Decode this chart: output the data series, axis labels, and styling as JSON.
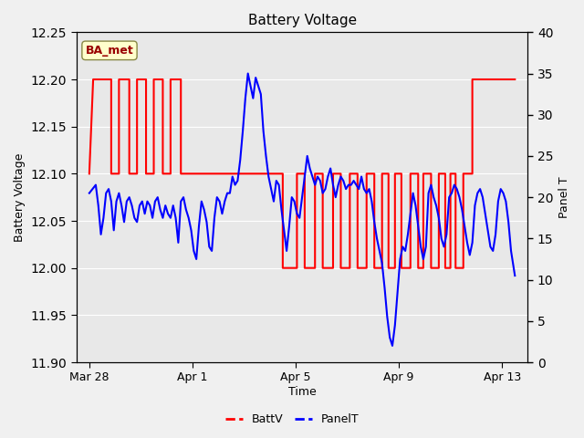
{
  "title": "Battery Voltage",
  "xlabel": "Time",
  "ylabel_left": "Battery Voltage",
  "ylabel_right": "Panel T",
  "ylim_left": [
    11.9,
    12.25
  ],
  "ylim_right": [
    0,
    40
  ],
  "yticks_left": [
    11.9,
    11.95,
    12.0,
    12.05,
    12.1,
    12.15,
    12.2,
    12.25
  ],
  "yticks_right": [
    0,
    5,
    10,
    15,
    20,
    25,
    30,
    35,
    40
  ],
  "bg_color": "#f0f0f0",
  "plot_bg_color": "#e8e8e8",
  "grid_color": "#ffffff",
  "annotation_text": "BA_met",
  "annotation_bg": "#ffffcc",
  "annotation_border": "#888844",
  "annotation_text_color": "#990000",
  "batt_color": "#ff0000",
  "panel_color": "#0000ff",
  "xticklabels": [
    "Mar 28",
    "Apr 1",
    "Apr 5",
    "Apr 9",
    "Apr 13"
  ],
  "xtick_positions": [
    0.0,
    4.0,
    8.0,
    12.0,
    16.0
  ],
  "xlim": [
    -0.5,
    17.0
  ],
  "batt_data": [
    [
      0.0,
      12.1
    ],
    [
      0.0,
      12.1
    ],
    [
      0.15,
      12.2
    ],
    [
      0.85,
      12.2
    ],
    [
      0.85,
      12.1
    ],
    [
      1.15,
      12.1
    ],
    [
      1.15,
      12.2
    ],
    [
      1.55,
      12.2
    ],
    [
      1.55,
      12.1
    ],
    [
      1.85,
      12.1
    ],
    [
      1.85,
      12.2
    ],
    [
      2.2,
      12.2
    ],
    [
      2.2,
      12.1
    ],
    [
      2.5,
      12.1
    ],
    [
      2.5,
      12.2
    ],
    [
      2.85,
      12.2
    ],
    [
      2.85,
      12.1
    ],
    [
      3.15,
      12.1
    ],
    [
      3.15,
      12.2
    ],
    [
      3.55,
      12.2
    ],
    [
      3.55,
      12.1
    ],
    [
      7.5,
      12.1
    ],
    [
      7.5,
      12.0
    ],
    [
      8.05,
      12.0
    ],
    [
      8.05,
      12.1
    ],
    [
      8.35,
      12.1
    ],
    [
      8.35,
      12.0
    ],
    [
      8.75,
      12.0
    ],
    [
      8.75,
      12.1
    ],
    [
      9.05,
      12.1
    ],
    [
      9.05,
      12.0
    ],
    [
      9.45,
      12.0
    ],
    [
      9.45,
      12.1
    ],
    [
      9.75,
      12.1
    ],
    [
      9.75,
      12.0
    ],
    [
      10.1,
      12.0
    ],
    [
      10.1,
      12.1
    ],
    [
      10.4,
      12.1
    ],
    [
      10.4,
      12.0
    ],
    [
      10.75,
      12.0
    ],
    [
      10.75,
      12.1
    ],
    [
      11.05,
      12.1
    ],
    [
      11.05,
      12.0
    ],
    [
      11.35,
      12.0
    ],
    [
      11.35,
      12.1
    ],
    [
      11.6,
      12.1
    ],
    [
      11.6,
      12.0
    ],
    [
      11.85,
      12.0
    ],
    [
      11.85,
      12.1
    ],
    [
      12.1,
      12.1
    ],
    [
      12.1,
      12.0
    ],
    [
      12.45,
      12.0
    ],
    [
      12.45,
      12.1
    ],
    [
      12.75,
      12.1
    ],
    [
      12.75,
      12.0
    ],
    [
      12.95,
      12.0
    ],
    [
      12.95,
      12.1
    ],
    [
      13.25,
      12.1
    ],
    [
      13.25,
      12.0
    ],
    [
      13.55,
      12.0
    ],
    [
      13.55,
      12.1
    ],
    [
      13.8,
      12.1
    ],
    [
      13.8,
      12.0
    ],
    [
      14.0,
      12.0
    ],
    [
      14.0,
      12.1
    ],
    [
      14.2,
      12.1
    ],
    [
      14.2,
      12.0
    ],
    [
      14.5,
      12.0
    ],
    [
      14.5,
      12.1
    ],
    [
      14.85,
      12.1
    ],
    [
      14.85,
      12.2
    ],
    [
      16.5,
      12.2
    ]
  ],
  "panel_data": [
    [
      0.0,
      20.5
    ],
    [
      0.25,
      21.5
    ],
    [
      0.35,
      19.0
    ],
    [
      0.45,
      15.5
    ],
    [
      0.55,
      17.5
    ],
    [
      0.65,
      20.5
    ],
    [
      0.75,
      21.0
    ],
    [
      0.85,
      19.5
    ],
    [
      0.95,
      16.0
    ],
    [
      1.05,
      19.5
    ],
    [
      1.15,
      20.5
    ],
    [
      1.25,
      19.0
    ],
    [
      1.35,
      17.0
    ],
    [
      1.45,
      19.5
    ],
    [
      1.55,
      20.0
    ],
    [
      1.65,
      19.0
    ],
    [
      1.75,
      17.5
    ],
    [
      1.85,
      17.0
    ],
    [
      1.95,
      19.0
    ],
    [
      2.05,
      19.5
    ],
    [
      2.15,
      18.0
    ],
    [
      2.25,
      19.5
    ],
    [
      2.35,
      19.0
    ],
    [
      2.45,
      17.5
    ],
    [
      2.55,
      19.5
    ],
    [
      2.65,
      20.0
    ],
    [
      2.75,
      18.5
    ],
    [
      2.85,
      17.5
    ],
    [
      2.95,
      19.0
    ],
    [
      3.05,
      18.0
    ],
    [
      3.15,
      17.5
    ],
    [
      3.25,
      19.0
    ],
    [
      3.35,
      17.5
    ],
    [
      3.45,
      14.5
    ],
    [
      3.55,
      19.5
    ],
    [
      3.65,
      20.0
    ],
    [
      3.75,
      18.5
    ],
    [
      3.85,
      17.5
    ],
    [
      3.95,
      16.0
    ],
    [
      4.05,
      13.5
    ],
    [
      4.15,
      12.5
    ],
    [
      4.25,
      16.5
    ],
    [
      4.35,
      19.5
    ],
    [
      4.45,
      18.5
    ],
    [
      4.55,
      17.0
    ],
    [
      4.65,
      14.0
    ],
    [
      4.75,
      13.5
    ],
    [
      4.85,
      17.5
    ],
    [
      4.95,
      20.0
    ],
    [
      5.05,
      19.5
    ],
    [
      5.15,
      18.0
    ],
    [
      5.25,
      19.5
    ],
    [
      5.35,
      20.5
    ],
    [
      5.45,
      20.5
    ],
    [
      5.55,
      22.5
    ],
    [
      5.65,
      21.5
    ],
    [
      5.75,
      22.0
    ],
    [
      5.85,
      24.5
    ],
    [
      5.95,
      28.0
    ],
    [
      6.05,
      32.0
    ],
    [
      6.15,
      35.0
    ],
    [
      6.25,
      33.5
    ],
    [
      6.35,
      32.0
    ],
    [
      6.45,
      34.5
    ],
    [
      6.55,
      33.5
    ],
    [
      6.65,
      32.5
    ],
    [
      6.75,
      28.0
    ],
    [
      6.85,
      25.0
    ],
    [
      6.95,
      22.5
    ],
    [
      7.05,
      21.0
    ],
    [
      7.15,
      19.5
    ],
    [
      7.25,
      22.0
    ],
    [
      7.35,
      21.5
    ],
    [
      7.45,
      18.5
    ],
    [
      7.55,
      16.0
    ],
    [
      7.65,
      13.5
    ],
    [
      7.75,
      16.5
    ],
    [
      7.85,
      20.0
    ],
    [
      7.95,
      19.5
    ],
    [
      8.05,
      18.0
    ],
    [
      8.15,
      17.5
    ],
    [
      8.25,
      20.0
    ],
    [
      8.35,
      22.5
    ],
    [
      8.45,
      25.0
    ],
    [
      8.55,
      23.5
    ],
    [
      8.65,
      22.5
    ],
    [
      8.75,
      21.5
    ],
    [
      8.85,
      22.5
    ],
    [
      8.95,
      22.0
    ],
    [
      9.05,
      20.5
    ],
    [
      9.15,
      21.0
    ],
    [
      9.25,
      22.5
    ],
    [
      9.35,
      23.5
    ],
    [
      9.45,
      21.5
    ],
    [
      9.55,
      20.0
    ],
    [
      9.65,
      21.5
    ],
    [
      9.75,
      22.5
    ],
    [
      9.85,
      22.0
    ],
    [
      9.95,
      21.0
    ],
    [
      10.05,
      21.5
    ],
    [
      10.15,
      21.5
    ],
    [
      10.25,
      22.0
    ],
    [
      10.35,
      21.5
    ],
    [
      10.45,
      21.0
    ],
    [
      10.55,
      22.5
    ],
    [
      10.65,
      21.0
    ],
    [
      10.75,
      20.5
    ],
    [
      10.85,
      21.0
    ],
    [
      10.95,
      19.5
    ],
    [
      11.05,
      17.0
    ],
    [
      11.15,
      15.0
    ],
    [
      11.25,
      13.5
    ],
    [
      11.35,
      12.0
    ],
    [
      11.45,
      9.0
    ],
    [
      11.55,
      5.5
    ],
    [
      11.65,
      3.0
    ],
    [
      11.75,
      2.0
    ],
    [
      11.85,
      4.5
    ],
    [
      11.95,
      8.5
    ],
    [
      12.05,
      12.5
    ],
    [
      12.15,
      14.0
    ],
    [
      12.25,
      13.5
    ],
    [
      12.35,
      15.5
    ],
    [
      12.45,
      18.0
    ],
    [
      12.55,
      20.5
    ],
    [
      12.65,
      19.0
    ],
    [
      12.75,
      16.5
    ],
    [
      12.85,
      14.0
    ],
    [
      12.95,
      12.5
    ],
    [
      13.05,
      14.0
    ],
    [
      13.15,
      20.5
    ],
    [
      13.25,
      21.5
    ],
    [
      13.35,
      20.0
    ],
    [
      13.45,
      19.0
    ],
    [
      13.55,
      17.5
    ],
    [
      13.65,
      15.0
    ],
    [
      13.75,
      14.0
    ],
    [
      13.85,
      15.5
    ],
    [
      13.95,
      20.0
    ],
    [
      14.05,
      20.5
    ],
    [
      14.15,
      21.5
    ],
    [
      14.25,
      21.0
    ],
    [
      14.35,
      20.0
    ],
    [
      14.45,
      18.5
    ],
    [
      14.55,
      16.5
    ],
    [
      14.65,
      14.5
    ],
    [
      14.75,
      13.0
    ],
    [
      14.85,
      14.5
    ],
    [
      14.95,
      19.0
    ],
    [
      15.05,
      20.5
    ],
    [
      15.15,
      21.0
    ],
    [
      15.25,
      20.0
    ],
    [
      15.35,
      18.0
    ],
    [
      15.45,
      16.0
    ],
    [
      15.55,
      14.0
    ],
    [
      15.65,
      13.5
    ],
    [
      15.75,
      15.5
    ],
    [
      15.85,
      19.5
    ],
    [
      15.95,
      21.0
    ],
    [
      16.05,
      20.5
    ],
    [
      16.15,
      19.5
    ],
    [
      16.25,
      17.0
    ],
    [
      16.35,
      13.5
    ],
    [
      16.45,
      11.5
    ],
    [
      16.5,
      10.5
    ]
  ]
}
